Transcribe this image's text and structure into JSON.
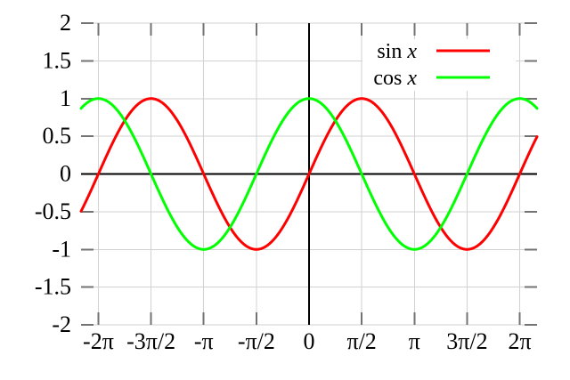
{
  "chart_data": {
    "type": "line",
    "title": "",
    "xlabel": "",
    "ylabel": "",
    "xlim": [
      -6.8,
      6.8
    ],
    "ylim": [
      -2,
      2
    ],
    "grid": true,
    "zero_axes": true,
    "legend_position": "top-right-inside",
    "x_ticks": [
      {
        "value": -6.2831853,
        "label": "-2π"
      },
      {
        "value": -4.712389,
        "label": "-3π/2"
      },
      {
        "value": -3.1415927,
        "label": "-π"
      },
      {
        "value": -1.5707963,
        "label": "-π/2"
      },
      {
        "value": 0,
        "label": "0"
      },
      {
        "value": 1.5707963,
        "label": "π/2"
      },
      {
        "value": 3.1415927,
        "label": "π"
      },
      {
        "value": 4.712389,
        "label": "3π/2"
      },
      {
        "value": 6.2831853,
        "label": "2π"
      }
    ],
    "y_ticks": [
      {
        "value": -2,
        "label": "-2"
      },
      {
        "value": -1.5,
        "label": "-1.5"
      },
      {
        "value": -1,
        "label": "-1"
      },
      {
        "value": -0.5,
        "label": "-0.5"
      },
      {
        "value": 0,
        "label": "0"
      },
      {
        "value": 0.5,
        "label": "0.5"
      },
      {
        "value": 1,
        "label": "1"
      },
      {
        "value": 1.5,
        "label": "1.5"
      },
      {
        "value": 2,
        "label": "2"
      }
    ],
    "series": [
      {
        "fn": "sin",
        "label_prefix": "sin",
        "label_var": "x",
        "color": "#ff0000",
        "amplitude": 1,
        "period": 6.2831853
      },
      {
        "fn": "cos",
        "label_prefix": "cos",
        "label_var": "x",
        "color": "#00ff00",
        "amplitude": 1,
        "period": 6.2831853
      }
    ]
  },
  "colors": {
    "background": "#ffffff",
    "grid": "#d2d2d2",
    "tick": "#737373",
    "zero_axis": "#000000",
    "text": "#000000",
    "legend_background": "#ffffff"
  }
}
